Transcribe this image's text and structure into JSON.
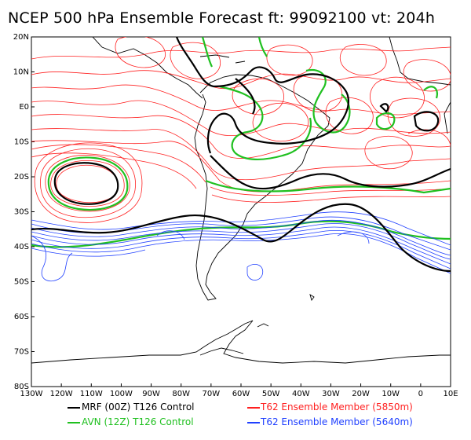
{
  "title": "NCEP 500 hPa Ensemble Forecast  ft: 99092100 vt: 204h",
  "map": {
    "lat_labels": [
      "20N",
      "10N",
      "E0",
      "10S",
      "20S",
      "30S",
      "40S",
      "50S",
      "60S",
      "70S",
      "80S"
    ],
    "lon_labels": [
      "130W",
      "120W",
      "110W",
      "100W",
      "90W",
      "80W",
      "70W",
      "60W",
      "50W",
      "40W",
      "30W",
      "20W",
      "10W",
      "0",
      "10E"
    ],
    "extent": {
      "lon_min": -130,
      "lon_max": 10,
      "lat_min": -80,
      "lat_max": 20
    }
  },
  "legend": [
    {
      "label": "MRF (00Z) T126 Control",
      "color": "#000000"
    },
    {
      "label": "T62 Ensemble Member (5850m)",
      "color": "#ff2020"
    },
    {
      "label": "AVN (12Z) T126 Control",
      "color": "#20c020"
    },
    {
      "label": "T62 Ensemble Member (5640m)",
      "color": "#2040ff"
    }
  ],
  "colors": {
    "mrf": "#000000",
    "red_members": "#ff2020",
    "avn": "#20c020",
    "blue_members": "#2040ff"
  }
}
